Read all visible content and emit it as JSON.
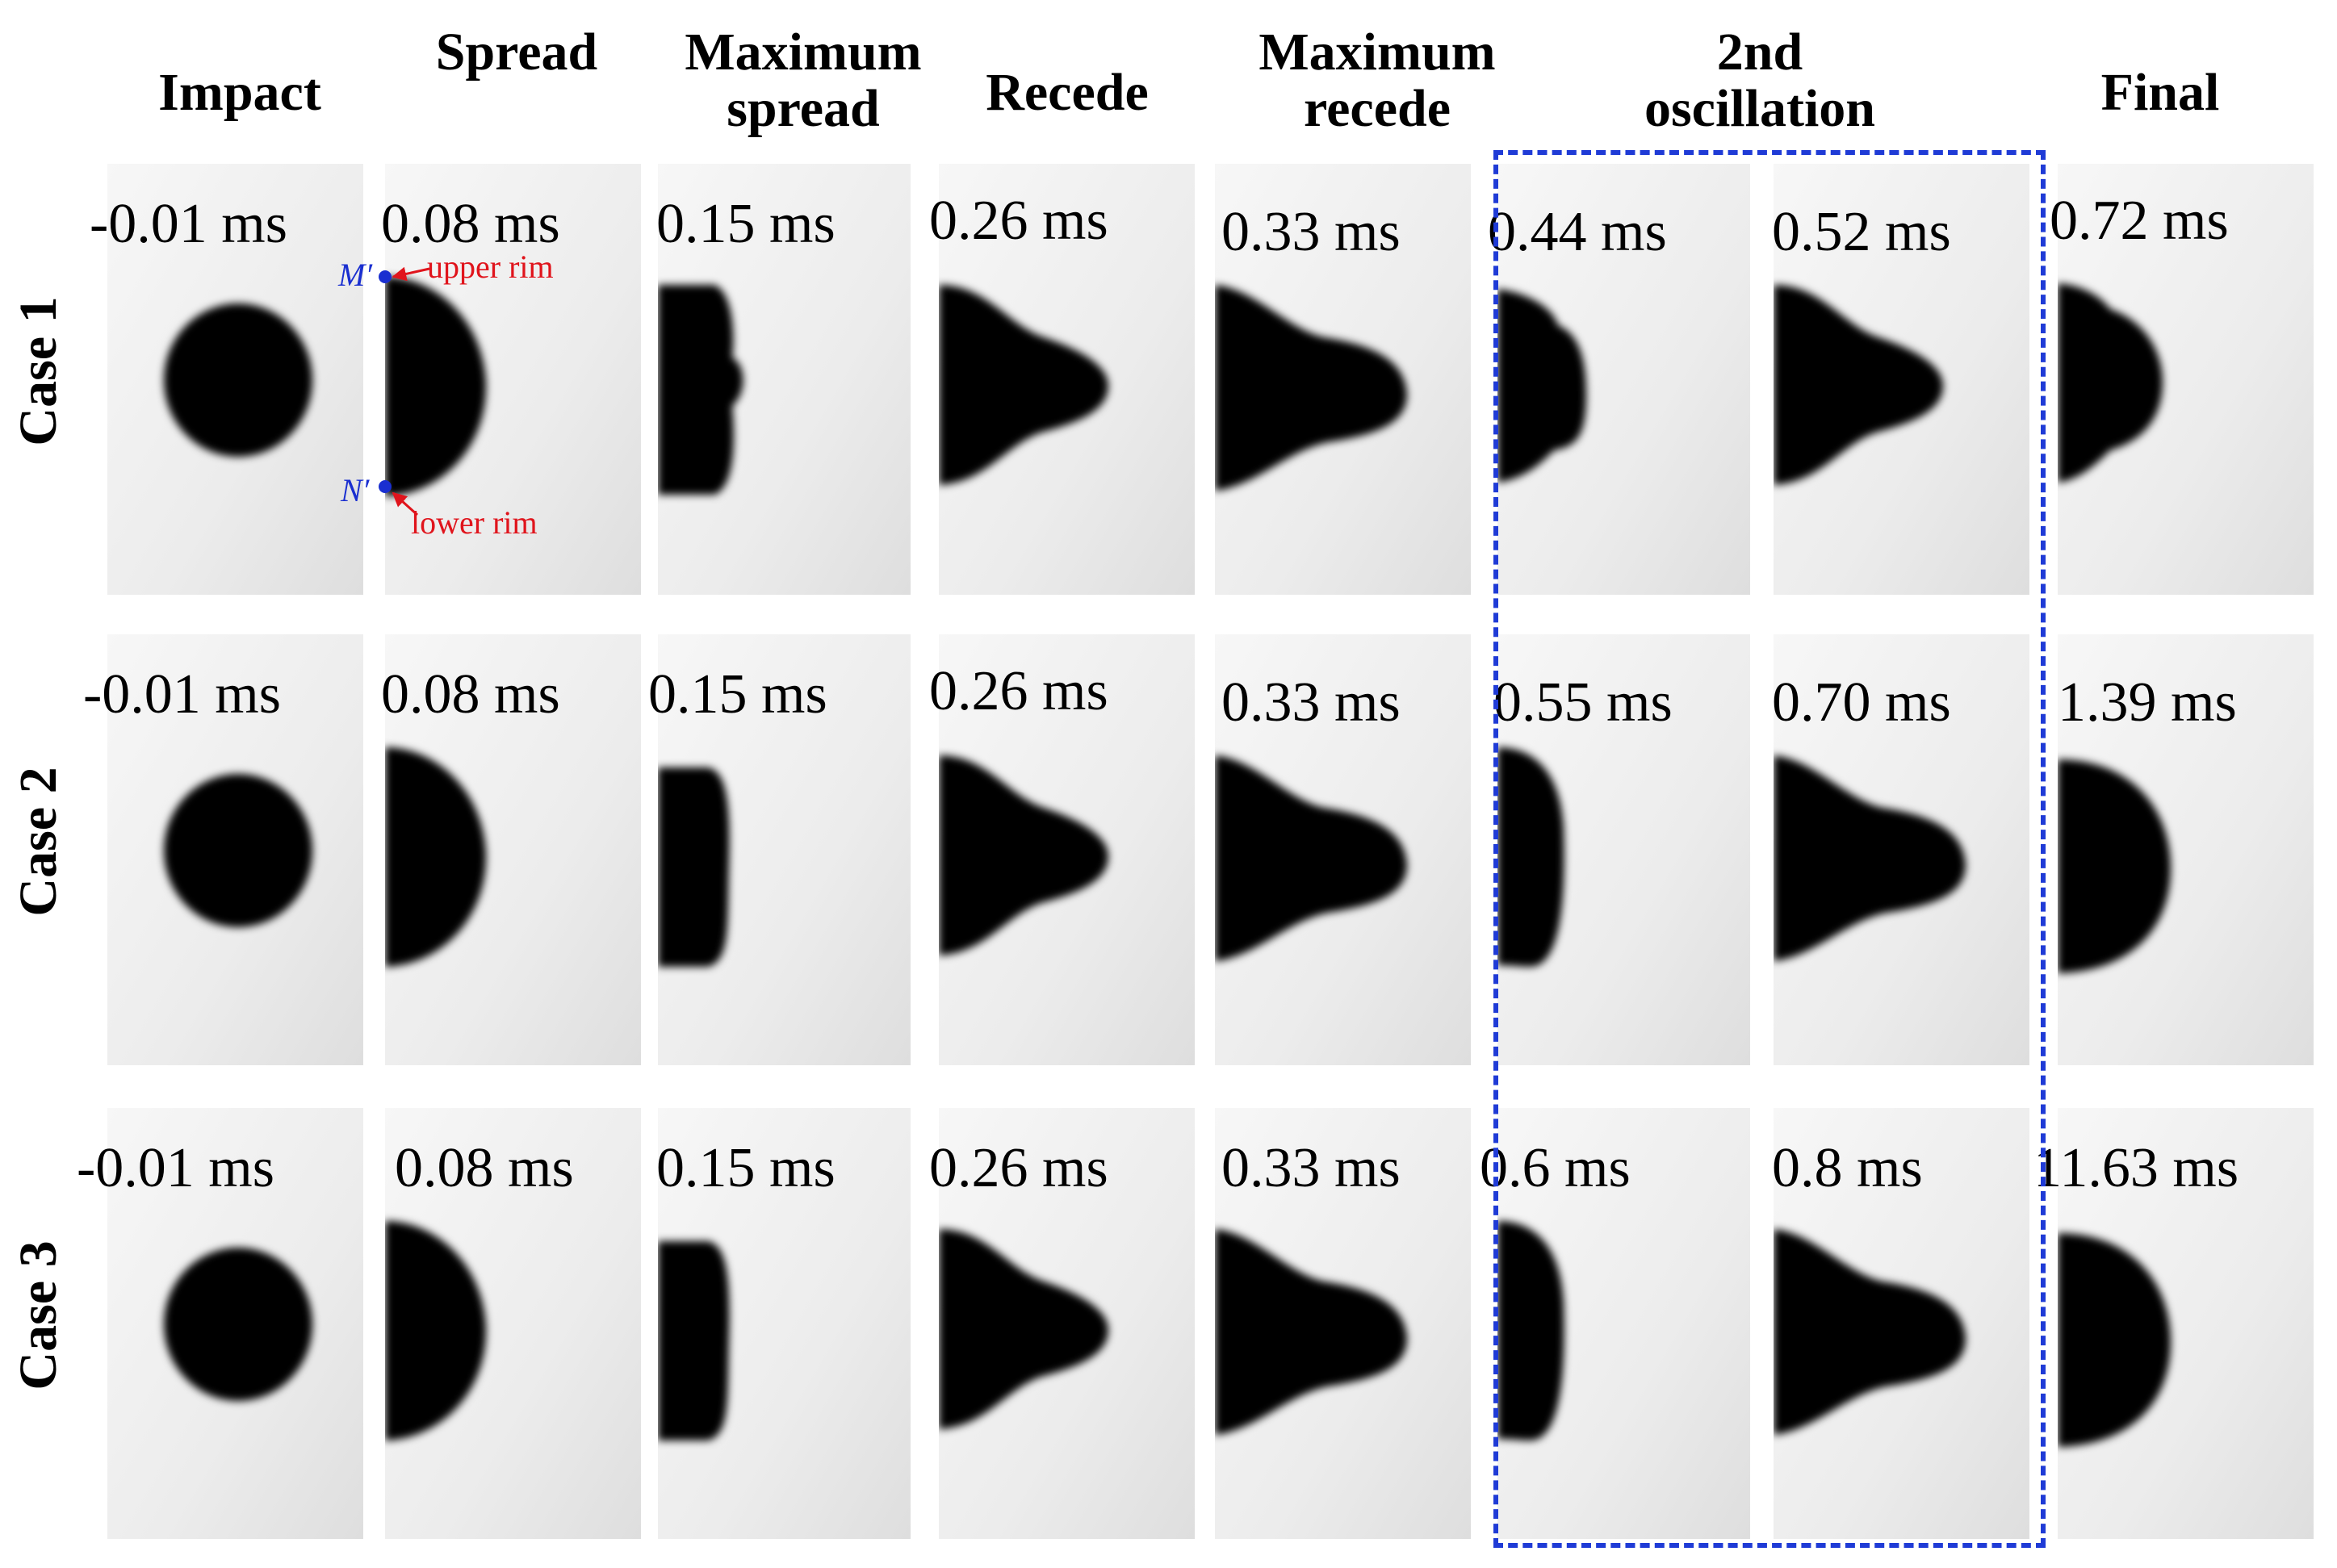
{
  "columns": [
    {
      "title": "Impact"
    },
    {
      "title": "Spread"
    },
    {
      "title": "Maximum\nspread"
    },
    {
      "title": "Recede"
    },
    {
      "title": "Maximum\nrecede"
    },
    {
      "title": "2nd\noscillation"
    },
    {
      "title": "Final"
    }
  ],
  "rows": [
    {
      "label": "Case 1",
      "times": [
        "-0.01 ms",
        "0.08 ms",
        "0.15 ms",
        "0.26 ms",
        "0.33 ms",
        "0.44 ms",
        "0.52 ms",
        "0.72 ms"
      ]
    },
    {
      "label": "Case 2",
      "times": [
        "-0.01 ms",
        "0.08 ms",
        "0.15 ms",
        "0.26 ms",
        "0.33 ms",
        "0.55 ms",
        "0.70 ms",
        "1.39 ms"
      ]
    },
    {
      "label": "Case 3",
      "times": [
        "-0.01 ms",
        "0.08 ms",
        "0.15 ms",
        "0.26 ms",
        "0.33 ms",
        "0.6 ms",
        "0.8 ms",
        "11.63 ms"
      ]
    }
  ],
  "annotations": {
    "upper_point": "M′",
    "upper_rim": "upper rim",
    "lower_point": "N′",
    "lower_rim": "lower rim"
  },
  "colors": {
    "highlight_box": "#1f3bd6",
    "rim_label": "#e0141c",
    "point_label": "#1a2fd0"
  }
}
